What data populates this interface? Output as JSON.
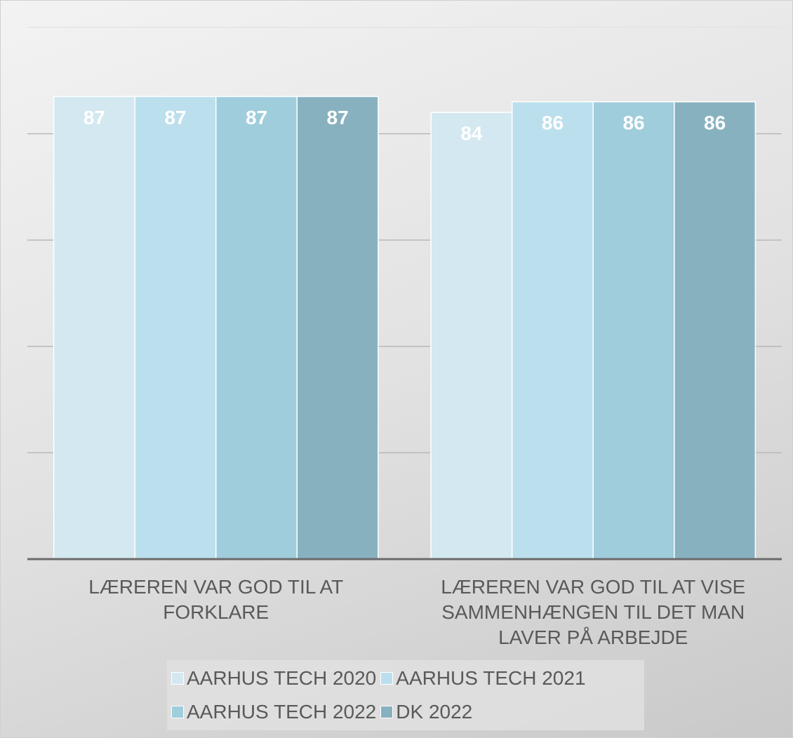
{
  "chart_data": {
    "type": "bar",
    "categories": [
      "LÆREREN VAR GOD TIL AT FORKLARE",
      "LÆREREN VAR GOD TIL AT VISE SAMMENHÆNGEN TIL DET MAN LAVER PÅ ARBEJDE"
    ],
    "series": [
      {
        "name": "AARHUS TECH 2020",
        "color": "#d3e8f0",
        "values": [
          87,
          84
        ]
      },
      {
        "name": "AARHUS TECH 2021",
        "color": "#bcdfed",
        "values": [
          87,
          86
        ]
      },
      {
        "name": "AARHUS TECH 2022",
        "color": "#9fcddc",
        "values": [
          87,
          86
        ]
      },
      {
        "name": "DK 2022",
        "color": "#88b1c0",
        "values": [
          87,
          86
        ]
      }
    ],
    "ylim": [
      0,
      100
    ],
    "yticks": [
      0,
      20,
      40,
      60,
      80,
      100
    ],
    "grid": true,
    "legend": "bottom"
  }
}
